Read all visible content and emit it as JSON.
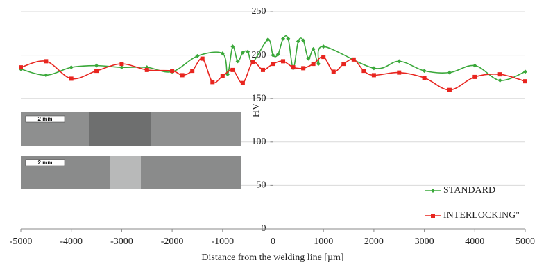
{
  "chart_data": {
    "type": "line",
    "x_label": "Distance from the welding line [µm]",
    "y_label": "HV",
    "xlim": [
      -5000,
      5000
    ],
    "xticks": [
      -5000,
      -4000,
      -3000,
      -2000,
      -1000,
      0,
      1000,
      2000,
      3000,
      4000,
      5000
    ],
    "ylim": [
      0,
      250
    ],
    "yticks": [
      0,
      50,
      100,
      150,
      200,
      250
    ],
    "grid": true,
    "legend": "lower right",
    "annotations": [
      "2 mm",
      "2 mm"
    ],
    "series": [
      {
        "name": "STANDARD",
        "color": "#3aa83a",
        "marker": "diamond",
        "x": [
          -5000,
          -4500,
          -4000,
          -3500,
          -3000,
          -2500,
          -2000,
          -1500,
          -1000,
          -900,
          -800,
          -700,
          -600,
          -500,
          -400,
          -100,
          0,
          100,
          200,
          300,
          400,
          500,
          600,
          700,
          800,
          900,
          1000,
          2000,
          2500,
          3000,
          3500,
          4000,
          4500,
          5000
        ],
        "values": [
          184,
          177,
          186,
          188,
          186,
          186,
          181,
          199,
          202,
          178,
          210,
          193,
          203,
          204,
          192,
          218,
          200,
          201,
          219,
          219,
          185,
          216,
          217,
          196,
          207,
          190,
          210,
          185,
          193,
          182,
          180,
          188,
          171,
          181
        ]
      },
      {
        "name": "INTERLOCKING\"",
        "color": "#e8251f",
        "marker": "square",
        "x": [
          -5000,
          -4500,
          -4000,
          -3500,
          -3000,
          -2500,
          -2000,
          -1800,
          -1600,
          -1400,
          -1200,
          -1000,
          -800,
          -600,
          -400,
          -200,
          0,
          200,
          400,
          600,
          800,
          1000,
          1200,
          1400,
          1600,
          1800,
          2000,
          2500,
          3000,
          3500,
          4000,
          4500,
          5000
        ],
        "values": [
          186,
          193,
          173,
          182,
          190,
          183,
          182,
          177,
          182,
          196,
          169,
          176,
          183,
          168,
          192,
          183,
          190,
          193,
          186,
          185,
          190,
          198,
          181,
          190,
          195,
          182,
          177,
          180,
          174,
          160,
          175,
          178,
          170
        ]
      }
    ]
  }
}
